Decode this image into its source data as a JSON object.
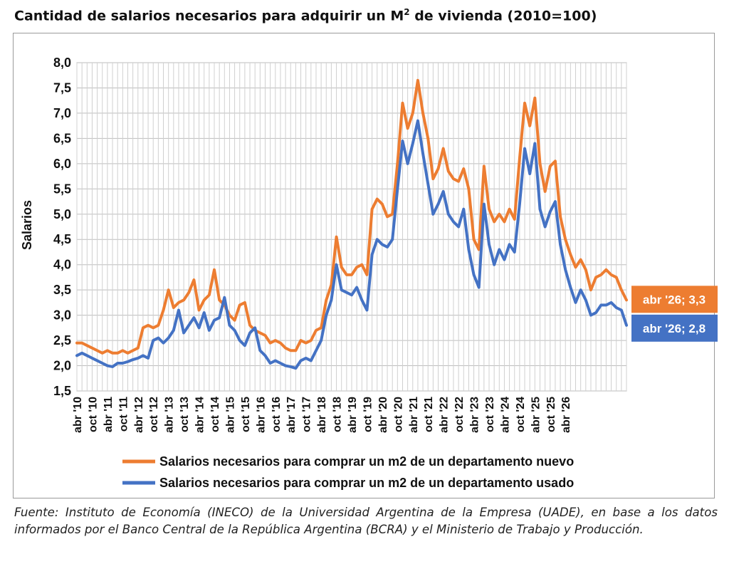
{
  "title_main": "Cantidad de salarios necesarios para adquirir un M",
  "title_sup": "2",
  "title_tail": " de vivienda (2010=100)",
  "source": "Fuente: Instituto de Economía (INECO) de la Universidad Argentina de la Empresa (UADE), en base a los datos informados por el Banco Central de la República Argentina (BCRA) y el Ministerio de Trabajo y Producción.",
  "chart_data": {
    "type": "line",
    "ylabel": "Salarios",
    "xlabel": "",
    "ylim": [
      1.5,
      8.0
    ],
    "y_ticks": [
      "1,5",
      "2,0",
      "2,5",
      "3,0",
      "3,5",
      "4,0",
      "4,5",
      "5,0",
      "5,5",
      "6,0",
      "6,5",
      "7,0",
      "7,5",
      "8,0"
    ],
    "x_ticks": [
      "abr '10",
      "oct '10",
      "abr '11",
      "oct '11",
      "abr '12",
      "oct '12",
      "abr '13",
      "oct '13",
      "abr '14",
      "oct '14",
      "abr '15",
      "oct '15",
      "abr '16",
      "oct '16",
      "abr '17",
      "oct '17",
      "abr '18",
      "oct '18",
      "abr '19",
      "oct '19",
      "abr '20",
      "oct '20",
      "abr '21",
      "oct '21",
      "abr '22",
      "oct '22",
      "abr '23",
      "oct '23",
      "abr '24",
      "oct '24",
      "abr '25",
      "oct '25",
      "abr '26"
    ],
    "grid": true,
    "legend_position": "bottom",
    "x_start": "2010-04",
    "x_step_months": 2,
    "series": [
      {
        "name": "Salarios necesarios para comprar un m2 de un departamento nuevo",
        "color": "#ed7d31",
        "end_label": "abr '26; 3,3",
        "values": [
          2.45,
          2.45,
          2.4,
          2.35,
          2.3,
          2.25,
          2.3,
          2.25,
          2.25,
          2.3,
          2.25,
          2.3,
          2.35,
          2.75,
          2.8,
          2.75,
          2.8,
          3.1,
          3.5,
          3.15,
          3.25,
          3.3,
          3.45,
          3.7,
          3.1,
          3.3,
          3.4,
          3.9,
          3.3,
          3.2,
          3.0,
          2.9,
          3.2,
          3.25,
          2.8,
          2.7,
          2.65,
          2.6,
          2.45,
          2.5,
          2.45,
          2.35,
          2.3,
          2.3,
          2.5,
          2.45,
          2.5,
          2.7,
          2.75,
          3.3,
          3.6,
          4.55,
          3.95,
          3.8,
          3.8,
          3.95,
          4.0,
          3.8,
          5.1,
          5.3,
          5.2,
          4.95,
          5.0,
          6.0,
          7.2,
          6.7,
          7.0,
          7.65,
          7.0,
          6.5,
          5.7,
          5.9,
          6.3,
          5.85,
          5.7,
          5.65,
          5.9,
          5.5,
          4.5,
          4.3,
          5.95,
          5.1,
          4.85,
          5.0,
          4.85,
          5.1,
          4.9,
          6.1,
          7.2,
          6.75,
          7.3,
          6.0,
          5.45,
          5.95,
          6.05,
          4.95,
          4.5,
          4.2,
          3.95,
          4.1,
          3.9,
          3.5,
          3.75,
          3.8,
          3.9,
          3.8,
          3.75,
          3.5,
          3.3
        ]
      },
      {
        "name": "Salarios necesarios para comprar un m2 de un departamento usado",
        "color": "#4472c4",
        "end_label": "abr '26; 2,8",
        "values": [
          2.2,
          2.25,
          2.2,
          2.15,
          2.1,
          2.05,
          2.0,
          1.98,
          2.05,
          2.05,
          2.08,
          2.12,
          2.15,
          2.2,
          2.15,
          2.5,
          2.55,
          2.45,
          2.55,
          2.7,
          3.1,
          2.65,
          2.8,
          2.95,
          2.75,
          3.05,
          2.7,
          2.9,
          2.95,
          3.35,
          2.8,
          2.7,
          2.5,
          2.4,
          2.65,
          2.75,
          2.3,
          2.2,
          2.05,
          2.1,
          2.05,
          2.0,
          1.98,
          1.95,
          2.1,
          2.15,
          2.1,
          2.3,
          2.5,
          3.0,
          3.3,
          4.0,
          3.5,
          3.45,
          3.4,
          3.55,
          3.3,
          3.1,
          4.2,
          4.5,
          4.4,
          4.35,
          4.5,
          5.5,
          6.45,
          6.0,
          6.4,
          6.85,
          6.2,
          5.6,
          5.0,
          5.2,
          5.45,
          5.0,
          4.85,
          4.75,
          5.1,
          4.3,
          3.8,
          3.55,
          5.2,
          4.4,
          4.0,
          4.3,
          4.1,
          4.4,
          4.25,
          5.2,
          6.3,
          5.8,
          6.4,
          5.1,
          4.75,
          5.05,
          5.25,
          4.4,
          3.9,
          3.55,
          3.25,
          3.5,
          3.3,
          3.0,
          3.05,
          3.2,
          3.2,
          3.25,
          3.15,
          3.1,
          2.8
        ]
      }
    ]
  }
}
